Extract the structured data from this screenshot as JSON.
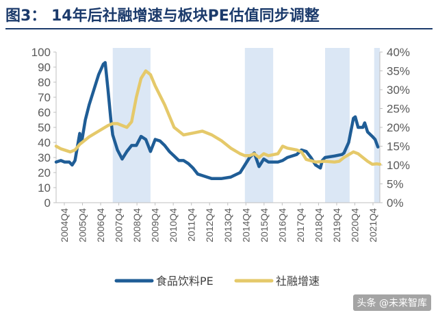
{
  "title": "图3：  14年后社融增速与板块PE估值同步调整",
  "watermark": "头条 @未来智库",
  "colors": {
    "title": "#1b3a6b",
    "pe_line": "#1f5d96",
    "social_financing_line": "#e5c96a",
    "shade": "#dbe7f5",
    "axis": "#bfbfbf"
  },
  "chart_data": {
    "type": "line",
    "legend_position": "bottom",
    "grid": false,
    "x_labels": [
      "2004Q4",
      "2005Q4",
      "2006Q4",
      "2007Q4",
      "2008Q4",
      "2009Q4",
      "2010Q4",
      "2011Q4",
      "2012Q4",
      "2013Q4",
      "2014Q4",
      "2015Q4",
      "2016Q4",
      "2017Q4",
      "2018Q4",
      "2019Q4",
      "2020Q4",
      "2021Q4"
    ],
    "x_range": [
      2004.75,
      2021.9
    ],
    "y_left": {
      "range": [
        0,
        100
      ],
      "ticks": [
        0,
        10,
        20,
        30,
        40,
        50,
        60,
        70,
        80,
        90,
        100
      ]
    },
    "y_right": {
      "range": [
        0,
        40
      ],
      "ticks": [
        "0%",
        "5%",
        "10%",
        "15%",
        "20%",
        "25%",
        "30%",
        "35%",
        "40%"
      ]
    },
    "shaded_periods": [
      [
        2007.75,
        2009.75
      ],
      [
        2014.75,
        2016.25
      ],
      [
        2019.0,
        2020.3
      ],
      [
        2021.6,
        2021.9
      ]
    ],
    "series": [
      {
        "name": "食品饮料PE",
        "axis": "left",
        "points": [
          [
            2004.75,
            27
          ],
          [
            2005.0,
            28
          ],
          [
            2005.2,
            27
          ],
          [
            2005.45,
            27
          ],
          [
            2005.6,
            25
          ],
          [
            2005.75,
            28
          ],
          [
            2006.0,
            46
          ],
          [
            2006.1,
            40
          ],
          [
            2006.3,
            55
          ],
          [
            2006.5,
            65
          ],
          [
            2006.75,
            75
          ],
          [
            2007.0,
            85
          ],
          [
            2007.25,
            92
          ],
          [
            2007.35,
            93
          ],
          [
            2007.5,
            75
          ],
          [
            2007.65,
            55
          ],
          [
            2007.75,
            45
          ],
          [
            2008.0,
            35
          ],
          [
            2008.25,
            29
          ],
          [
            2008.5,
            34
          ],
          [
            2008.75,
            38
          ],
          [
            2009.0,
            38
          ],
          [
            2009.25,
            44
          ],
          [
            2009.5,
            42
          ],
          [
            2009.75,
            34
          ],
          [
            2010.0,
            42
          ],
          [
            2010.25,
            41
          ],
          [
            2010.5,
            38
          ],
          [
            2010.75,
            34
          ],
          [
            2011.0,
            31
          ],
          [
            2011.25,
            28
          ],
          [
            2011.5,
            28
          ],
          [
            2011.75,
            26
          ],
          [
            2012.0,
            23
          ],
          [
            2012.25,
            19
          ],
          [
            2012.5,
            18
          ],
          [
            2012.75,
            17
          ],
          [
            2013.0,
            16
          ],
          [
            2013.5,
            16
          ],
          [
            2014.0,
            17
          ],
          [
            2014.5,
            20
          ],
          [
            2014.75,
            25
          ],
          [
            2015.0,
            30
          ],
          [
            2015.25,
            33
          ],
          [
            2015.5,
            24
          ],
          [
            2015.75,
            29
          ],
          [
            2016.0,
            27
          ],
          [
            2016.5,
            27
          ],
          [
            2016.75,
            28
          ],
          [
            2017.0,
            30
          ],
          [
            2017.5,
            32
          ],
          [
            2017.75,
            35
          ],
          [
            2018.0,
            34
          ],
          [
            2018.25,
            30
          ],
          [
            2018.5,
            25
          ],
          [
            2018.75,
            23
          ],
          [
            2018.85,
            28
          ],
          [
            2019.0,
            30
          ],
          [
            2019.5,
            31
          ],
          [
            2019.9,
            32
          ],
          [
            2020.0,
            33
          ],
          [
            2020.25,
            40
          ],
          [
            2020.5,
            56
          ],
          [
            2020.6,
            57
          ],
          [
            2020.75,
            50
          ],
          [
            2021.0,
            50
          ],
          [
            2021.1,
            53
          ],
          [
            2021.25,
            47
          ],
          [
            2021.5,
            44
          ],
          [
            2021.65,
            42
          ],
          [
            2021.8,
            37
          ]
        ]
      },
      {
        "name": "社融增速",
        "axis": "right",
        "points": [
          [
            2004.75,
            15.0
          ],
          [
            2005.0,
            14.3
          ],
          [
            2005.5,
            13.5
          ],
          [
            2005.75,
            14.0
          ],
          [
            2006.0,
            15.5
          ],
          [
            2006.5,
            17.5
          ],
          [
            2007.0,
            19.0
          ],
          [
            2007.5,
            20.5
          ],
          [
            2007.75,
            21.0
          ],
          [
            2008.0,
            21.0
          ],
          [
            2008.5,
            20.0
          ],
          [
            2008.75,
            21.5
          ],
          [
            2009.0,
            28.0
          ],
          [
            2009.25,
            33.0
          ],
          [
            2009.5,
            35.0
          ],
          [
            2009.75,
            34.0
          ],
          [
            2010.0,
            31.0
          ],
          [
            2010.5,
            26.0
          ],
          [
            2011.0,
            20.0
          ],
          [
            2011.5,
            18.0
          ],
          [
            2012.0,
            18.5
          ],
          [
            2012.5,
            19.0
          ],
          [
            2013.0,
            18.0
          ],
          [
            2013.5,
            16.5
          ],
          [
            2014.0,
            14.5
          ],
          [
            2014.5,
            13.0
          ],
          [
            2014.75,
            12.5
          ],
          [
            2015.0,
            12.5
          ],
          [
            2015.25,
            13.0
          ],
          [
            2015.5,
            12.0
          ],
          [
            2015.75,
            13.0
          ],
          [
            2016.0,
            12.5
          ],
          [
            2016.5,
            13.0
          ],
          [
            2016.75,
            15.0
          ],
          [
            2017.0,
            14.5
          ],
          [
            2017.5,
            14.0
          ],
          [
            2017.75,
            13.5
          ],
          [
            2018.0,
            11.5
          ],
          [
            2018.5,
            10.8
          ],
          [
            2019.0,
            11.0
          ],
          [
            2019.5,
            10.8
          ],
          [
            2019.75,
            11.0
          ],
          [
            2020.0,
            12.0
          ],
          [
            2020.5,
            13.5
          ],
          [
            2020.75,
            13.0
          ],
          [
            2021.0,
            12.0
          ],
          [
            2021.25,
            11.0
          ],
          [
            2021.5,
            10.2
          ],
          [
            2021.75,
            10.3
          ],
          [
            2021.9,
            10.2
          ]
        ]
      }
    ]
  }
}
